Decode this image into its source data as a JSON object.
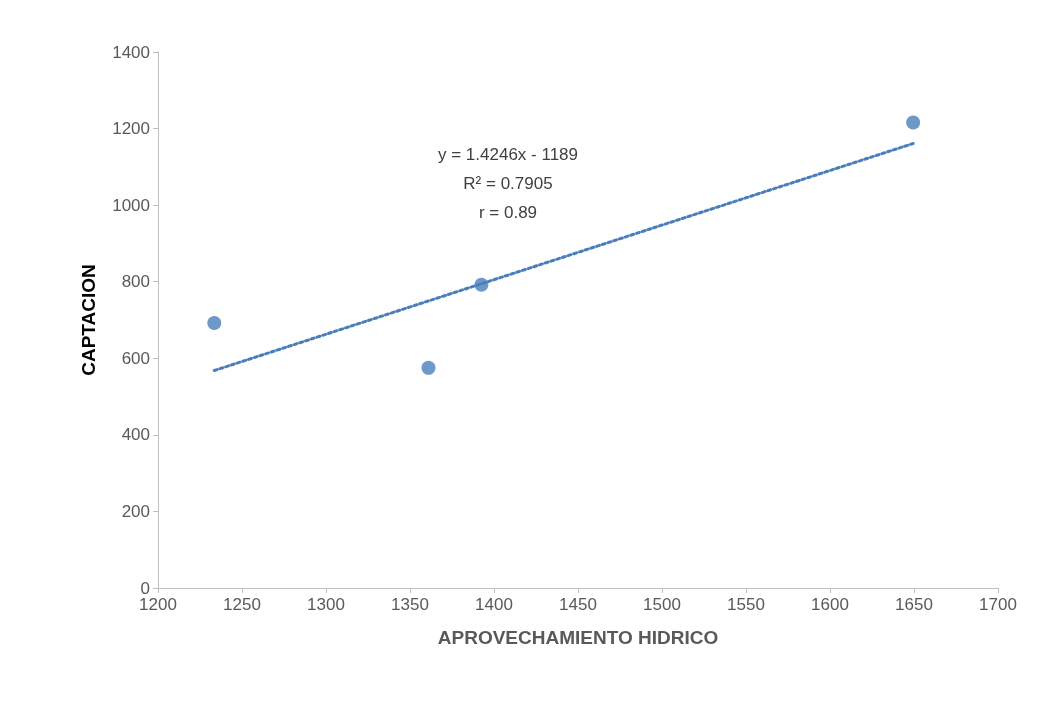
{
  "chart_data": {
    "type": "scatter",
    "xlabel": "APROVECHAMIENTO HIDRICO",
    "ylabel": "CAPTACION",
    "xlim": [
      1200,
      1700
    ],
    "xticks": [
      1200,
      1250,
      1300,
      1350,
      1400,
      1450,
      1500,
      1550,
      1600,
      1650,
      1700
    ],
    "ylim": [
      0,
      1400
    ],
    "yticks": [
      0,
      200,
      400,
      600,
      800,
      1000,
      1200,
      1400
    ],
    "grid": false,
    "marker": "circle",
    "series": [
      {
        "color": "#4a7ebb",
        "x": [
          1233.5,
          1361,
          1392.5,
          1649.5
        ],
        "values": [
          692,
          575,
          792,
          1216
        ]
      },
      {
        "type": "line",
        "color": "#4a7ebb",
        "line_style": "dotted",
        "marker": "none",
        "x": [
          1233.5,
          1649.5
        ],
        "values": [
          568,
          1161
        ]
      }
    ],
    "annotations": [
      "y = 1.4246x - 1189",
      "R² = 0.7905",
      "r = 0.89"
    ]
  }
}
